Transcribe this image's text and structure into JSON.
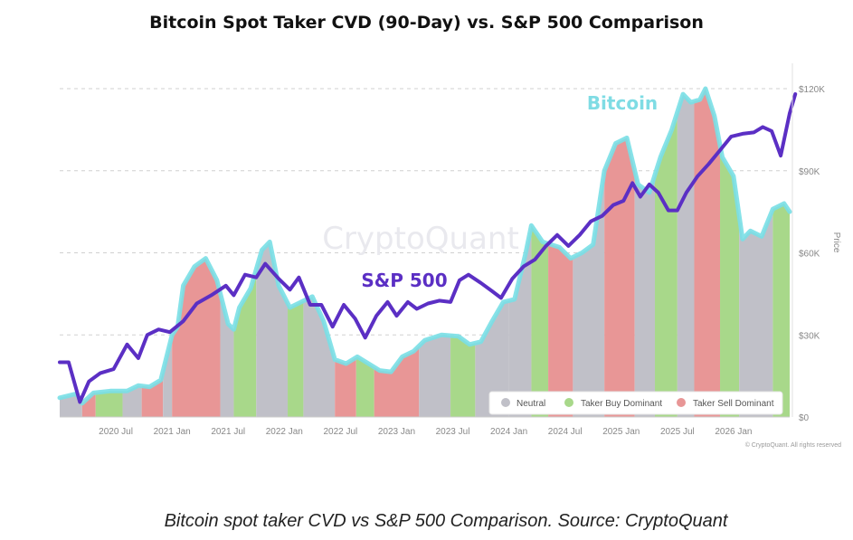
{
  "title": "Bitcoin Spot Taker CVD (90-Day) vs. S&P 500 Comparison",
  "caption": "Bitcoin spot taker CVD vs S&P 500 Comparison. Source: CryptoQuant",
  "watermark": "CryptoQuant",
  "copyright": "© CryptoQuant. All rights reserved",
  "annotations": {
    "bitcoin": "Bitcoin",
    "sp500": "S&P 500"
  },
  "colors": {
    "neutral": "#c0c0c8",
    "taker_buy": "#a8d88a",
    "taker_sell": "#e89696",
    "bitcoin": "#79dfe6",
    "sp500": "#5b2fc4",
    "grid": "#d0d0d0"
  },
  "chart_data": {
    "type": "area",
    "x_ticks": [
      "2020 Jul",
      "2021 Jan",
      "2021 Jul",
      "2022 Jan",
      "2022 Jul",
      "2023 Jan",
      "2023 Jul",
      "2024 Jan",
      "2024 Jul",
      "2025 Jan",
      "2025 Jul",
      "2026 Jan"
    ],
    "x_range": [
      2020.0,
      2026.5
    ],
    "y_axis": {
      "label": "Price",
      "ticks": [
        "$0",
        "$30K",
        "$60K",
        "$90K",
        "$120K"
      ],
      "ylim": [
        0,
        120000
      ]
    },
    "legend": {
      "placement": "bottom-right",
      "entries": [
        {
          "name": "Neutral",
          "color": "#c0c0c8"
        },
        {
          "name": "Taker Buy Dominant",
          "color": "#a8d88a"
        },
        {
          "name": "Taker Sell Dominant",
          "color": "#e89696"
        }
      ]
    },
    "bitcoin_price": {
      "name": "Bitcoin",
      "points": [
        [
          2020.0,
          7000
        ],
        [
          2020.15,
          8500
        ],
        [
          2020.2,
          5000
        ],
        [
          2020.3,
          8800
        ],
        [
          2020.45,
          9500
        ],
        [
          2020.6,
          9500
        ],
        [
          2020.7,
          11500
        ],
        [
          2020.8,
          11000
        ],
        [
          2020.9,
          13500
        ],
        [
          2021.0,
          30000
        ],
        [
          2021.05,
          33000
        ],
        [
          2021.1,
          48000
        ],
        [
          2021.2,
          55000
        ],
        [
          2021.3,
          58000
        ],
        [
          2021.4,
          50000
        ],
        [
          2021.5,
          34000
        ],
        [
          2021.55,
          32000
        ],
        [
          2021.6,
          40000
        ],
        [
          2021.7,
          47000
        ],
        [
          2021.8,
          61000
        ],
        [
          2021.87,
          64000
        ],
        [
          2021.95,
          48000
        ],
        [
          2022.05,
          40000
        ],
        [
          2022.15,
          42000
        ],
        [
          2022.25,
          44000
        ],
        [
          2022.35,
          35000
        ],
        [
          2022.45,
          21000
        ],
        [
          2022.55,
          19500
        ],
        [
          2022.65,
          22000
        ],
        [
          2022.75,
          19500
        ],
        [
          2022.85,
          17000
        ],
        [
          2022.95,
          16500
        ],
        [
          2023.05,
          22000
        ],
        [
          2023.15,
          24000
        ],
        [
          2023.25,
          28000
        ],
        [
          2023.4,
          30000
        ],
        [
          2023.55,
          29500
        ],
        [
          2023.65,
          26500
        ],
        [
          2023.75,
          27500
        ],
        [
          2023.85,
          35000
        ],
        [
          2023.95,
          42000
        ],
        [
          2024.05,
          43000
        ],
        [
          2024.15,
          60000
        ],
        [
          2024.2,
          70000
        ],
        [
          2024.3,
          64000
        ],
        [
          2024.45,
          62000
        ],
        [
          2024.55,
          58000
        ],
        [
          2024.65,
          60000
        ],
        [
          2024.75,
          63000
        ],
        [
          2024.85,
          90000
        ],
        [
          2024.95,
          100000
        ],
        [
          2025.05,
          102000
        ],
        [
          2025.15,
          85000
        ],
        [
          2025.25,
          82000
        ],
        [
          2025.35,
          95000
        ],
        [
          2025.45,
          105000
        ],
        [
          2025.55,
          118000
        ],
        [
          2025.62,
          115000
        ],
        [
          2025.7,
          116000
        ],
        [
          2025.75,
          120000
        ],
        [
          2025.83,
          110000
        ],
        [
          2025.9,
          95000
        ],
        [
          2026.0,
          88000
        ],
        [
          2026.08,
          65000
        ],
        [
          2026.15,
          68000
        ],
        [
          2026.25,
          66000
        ],
        [
          2026.35,
          76000
        ],
        [
          2026.45,
          78000
        ],
        [
          2026.5,
          75000
        ]
      ]
    },
    "cvd_regimes": [
      {
        "start": 2020.0,
        "end": 2020.2,
        "regime": "Neutral"
      },
      {
        "start": 2020.2,
        "end": 2020.32,
        "regime": "Taker Sell Dominant"
      },
      {
        "start": 2020.32,
        "end": 2020.56,
        "regime": "Taker Buy Dominant"
      },
      {
        "start": 2020.56,
        "end": 2020.73,
        "regime": "Neutral"
      },
      {
        "start": 2020.73,
        "end": 2020.92,
        "regime": "Taker Sell Dominant"
      },
      {
        "start": 2020.92,
        "end": 2021.0,
        "regime": "Neutral"
      },
      {
        "start": 2021.0,
        "end": 2021.43,
        "regime": "Taker Sell Dominant"
      },
      {
        "start": 2021.43,
        "end": 2021.55,
        "regime": "Neutral"
      },
      {
        "start": 2021.55,
        "end": 2021.75,
        "regime": "Taker Buy Dominant"
      },
      {
        "start": 2021.75,
        "end": 2022.03,
        "regime": "Neutral"
      },
      {
        "start": 2022.03,
        "end": 2022.17,
        "regime": "Taker Buy Dominant"
      },
      {
        "start": 2022.17,
        "end": 2022.45,
        "regime": "Neutral"
      },
      {
        "start": 2022.45,
        "end": 2022.64,
        "regime": "Taker Sell Dominant"
      },
      {
        "start": 2022.64,
        "end": 2022.8,
        "regime": "Taker Buy Dominant"
      },
      {
        "start": 2022.8,
        "end": 2023.2,
        "regime": "Taker Sell Dominant"
      },
      {
        "start": 2023.2,
        "end": 2023.48,
        "regime": "Neutral"
      },
      {
        "start": 2023.48,
        "end": 2023.7,
        "regime": "Taker Buy Dominant"
      },
      {
        "start": 2023.7,
        "end": 2024.0,
        "regime": "Neutral"
      },
      {
        "start": 2024.0,
        "end": 2024.2,
        "regime": "Neutral"
      },
      {
        "start": 2024.2,
        "end": 2024.35,
        "regime": "Taker Buy Dominant"
      },
      {
        "start": 2024.35,
        "end": 2024.57,
        "regime": "Taker Sell Dominant"
      },
      {
        "start": 2024.57,
        "end": 2024.85,
        "regime": "Neutral"
      },
      {
        "start": 2024.85,
        "end": 2025.12,
        "regime": "Taker Sell Dominant"
      },
      {
        "start": 2025.12,
        "end": 2025.3,
        "regime": "Neutral"
      },
      {
        "start": 2025.3,
        "end": 2025.5,
        "regime": "Taker Buy Dominant"
      },
      {
        "start": 2025.5,
        "end": 2025.65,
        "regime": "Neutral"
      },
      {
        "start": 2025.65,
        "end": 2025.88,
        "regime": "Taker Sell Dominant"
      },
      {
        "start": 2025.88,
        "end": 2026.05,
        "regime": "Taker Buy Dominant"
      },
      {
        "start": 2026.05,
        "end": 2026.35,
        "regime": "Neutral"
      },
      {
        "start": 2026.35,
        "end": 2026.5,
        "regime": "Taker Buy Dominant"
      }
    ],
    "sp500_line": {
      "name": "S&P 500",
      "points": [
        [
          2020.0,
          20000
        ],
        [
          2020.08,
          20000
        ],
        [
          2020.18,
          5500
        ],
        [
          2020.26,
          13000
        ],
        [
          2020.36,
          16000
        ],
        [
          2020.48,
          17500
        ],
        [
          2020.6,
          26500
        ],
        [
          2020.7,
          21500
        ],
        [
          2020.78,
          30000
        ],
        [
          2020.88,
          32000
        ],
        [
          2020.98,
          31000
        ],
        [
          2021.1,
          35000
        ],
        [
          2021.22,
          41500
        ],
        [
          2021.35,
          44500
        ],
        [
          2021.48,
          48000
        ],
        [
          2021.55,
          44500
        ],
        [
          2021.65,
          52000
        ],
        [
          2021.75,
          51000
        ],
        [
          2021.83,
          56000
        ],
        [
          2021.95,
          50500
        ],
        [
          2022.05,
          46500
        ],
        [
          2022.13,
          51000
        ],
        [
          2022.23,
          41000
        ],
        [
          2022.33,
          41000
        ],
        [
          2022.43,
          33000
        ],
        [
          2022.53,
          41000
        ],
        [
          2022.63,
          36000
        ],
        [
          2022.72,
          29000
        ],
        [
          2022.82,
          37000
        ],
        [
          2022.92,
          42000
        ],
        [
          2023.0,
          37000
        ],
        [
          2023.1,
          42000
        ],
        [
          2023.18,
          39500
        ],
        [
          2023.28,
          41500
        ],
        [
          2023.38,
          42500
        ],
        [
          2023.48,
          42000
        ],
        [
          2023.56,
          50000
        ],
        [
          2023.64,
          52000
        ],
        [
          2023.75,
          49000
        ],
        [
          2023.85,
          46000
        ],
        [
          2023.93,
          43500
        ],
        [
          2024.03,
          50500
        ],
        [
          2024.13,
          55000
        ],
        [
          2024.23,
          57500
        ],
        [
          2024.33,
          62500
        ],
        [
          2024.43,
          66500
        ],
        [
          2024.53,
          62500
        ],
        [
          2024.63,
          66500
        ],
        [
          2024.73,
          71500
        ],
        [
          2024.83,
          73500
        ],
        [
          2024.93,
          77500
        ],
        [
          2025.02,
          79000
        ],
        [
          2025.1,
          85500
        ],
        [
          2025.17,
          80500
        ],
        [
          2025.25,
          85000
        ],
        [
          2025.33,
          82000
        ],
        [
          2025.42,
          75500
        ],
        [
          2025.5,
          75500
        ],
        [
          2025.58,
          82000
        ],
        [
          2025.68,
          88000
        ],
        [
          2025.78,
          92500
        ],
        [
          2025.88,
          97500
        ],
        [
          2025.98,
          102500
        ],
        [
          2026.08,
          103500
        ],
        [
          2026.18,
          104000
        ],
        [
          2026.26,
          106000
        ],
        [
          2026.34,
          104500
        ],
        [
          2026.42,
          95500
        ],
        [
          2026.5,
          111000
        ],
        [
          2026.55,
          118000
        ]
      ]
    }
  }
}
